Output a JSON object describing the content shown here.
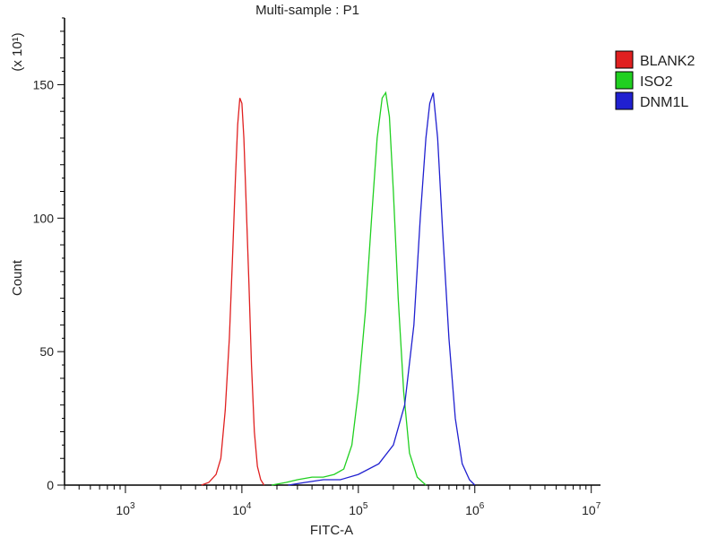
{
  "chart_data": {
    "type": "line",
    "title": "Multi-sample : P1",
    "xlabel": "FITC-A",
    "ylabel": "Count",
    "y_multiplier_label": "(x 10¹)",
    "x_scale": "log",
    "xlim": [
      300,
      12000000
    ],
    "ylim": [
      0,
      175
    ],
    "x_ticks": [
      {
        "value": 1000,
        "base": "10",
        "exp": "3"
      },
      {
        "value": 10000,
        "base": "10",
        "exp": "4"
      },
      {
        "value": 100000,
        "base": "10",
        "exp": "5"
      },
      {
        "value": 1000000,
        "base": "10",
        "exp": "6"
      },
      {
        "value": 10000000,
        "base": "10",
        "exp": "7"
      }
    ],
    "y_ticks": [
      0,
      50,
      100,
      150
    ],
    "legend_position": "top-right",
    "grid": false,
    "series": [
      {
        "name": "BLANK2",
        "color": "#e02020",
        "points": [
          [
            4500,
            0
          ],
          [
            5200,
            1
          ],
          [
            6000,
            4
          ],
          [
            6600,
            10
          ],
          [
            7200,
            28
          ],
          [
            7800,
            55
          ],
          [
            8300,
            85
          ],
          [
            8800,
            115
          ],
          [
            9200,
            135
          ],
          [
            9600,
            145
          ],
          [
            10000,
            143
          ],
          [
            10400,
            130
          ],
          [
            10900,
            105
          ],
          [
            11500,
            75
          ],
          [
            12100,
            45
          ],
          [
            12800,
            20
          ],
          [
            13600,
            7
          ],
          [
            14500,
            2
          ],
          [
            15500,
            0
          ]
        ]
      },
      {
        "name": "ISO2",
        "color": "#20d020",
        "points": [
          [
            18000,
            0
          ],
          [
            24000,
            1
          ],
          [
            30000,
            2
          ],
          [
            40000,
            3
          ],
          [
            50000,
            3
          ],
          [
            62000,
            4
          ],
          [
            75000,
            6
          ],
          [
            88000,
            15
          ],
          [
            100000,
            35
          ],
          [
            115000,
            65
          ],
          [
            130000,
            100
          ],
          [
            145000,
            130
          ],
          [
            160000,
            145
          ],
          [
            172000,
            147
          ],
          [
            185000,
            138
          ],
          [
            200000,
            110
          ],
          [
            220000,
            70
          ],
          [
            245000,
            35
          ],
          [
            275000,
            12
          ],
          [
            320000,
            3
          ],
          [
            380000,
            0
          ]
        ]
      },
      {
        "name": "DNM1L",
        "color": "#2020d0",
        "points": [
          [
            25000,
            0
          ],
          [
            35000,
            1
          ],
          [
            50000,
            2
          ],
          [
            70000,
            2
          ],
          [
            100000,
            4
          ],
          [
            150000,
            8
          ],
          [
            200000,
            15
          ],
          [
            250000,
            30
          ],
          [
            300000,
            60
          ],
          [
            340000,
            100
          ],
          [
            380000,
            130
          ],
          [
            410000,
            143
          ],
          [
            440000,
            147
          ],
          [
            480000,
            130
          ],
          [
            530000,
            95
          ],
          [
            600000,
            55
          ],
          [
            680000,
            25
          ],
          [
            780000,
            8
          ],
          [
            900000,
            2
          ],
          [
            1000000,
            0
          ]
        ]
      }
    ]
  }
}
